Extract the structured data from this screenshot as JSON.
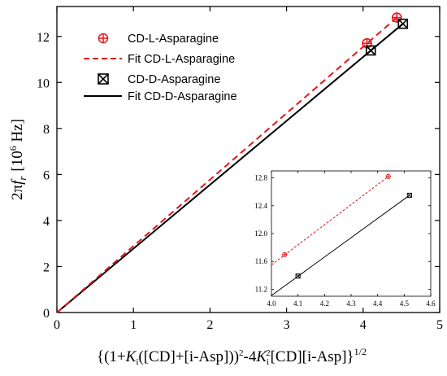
{
  "chart_data": [
    {
      "type": "line",
      "ylabel_parts": {
        "prefix": "2π",
        "f": "f",
        "r": "r",
        "unit_open": "[10",
        "unit_exp": "6",
        "unit_close": " Hz]"
      },
      "xlabel_parts": {
        "a": "{(1+",
        "K": "K",
        "i": "i",
        "b": "([CD]+[i-Asp]))",
        "sq": "2",
        "c": "-4",
        "K2": "K",
        "i2": "i",
        "sq2": "2",
        "d": "[CD][i-Asp]}",
        "half": "1/2"
      },
      "xlim": [
        0,
        5
      ],
      "ylim": [
        0,
        13.3
      ],
      "xticks": [
        "0",
        "1",
        "2",
        "3",
        "4",
        "5"
      ],
      "yticks": [
        "0",
        "2",
        "4",
        "6",
        "8",
        "10",
        "12"
      ],
      "legend_position": "top-left",
      "legend": {
        "l_points": "CD-L-Asparagine",
        "l_fit": "Fit CD-L-Asparagine",
        "d_points": "CD-D-Asparagine",
        "d_fit": "Fit CD-D-Asparagine"
      },
      "colors": {
        "l": "#e8141b",
        "d": "#000000"
      },
      "series": [
        {
          "name": "CD-L-Asparagine",
          "x": [
            4.05,
            4.44
          ],
          "y": [
            11.7,
            12.82
          ]
        },
        {
          "name": "Fit CD-L-Asparagine",
          "x": [
            0,
            4.44
          ],
          "y": [
            0,
            12.82
          ]
        },
        {
          "name": "CD-D-Asparagine",
          "x": [
            4.1,
            4.52
          ],
          "y": [
            11.39,
            12.55
          ]
        },
        {
          "name": "Fit CD-D-Asparagine",
          "x": [
            0,
            4.52
          ],
          "y": [
            0,
            12.55
          ]
        }
      ]
    },
    {
      "type": "line",
      "xlim": [
        4.0,
        4.6
      ],
      "ylim": [
        11.1,
        12.9
      ],
      "xticks": [
        "4.0",
        "4.1",
        "4.2",
        "4.3",
        "4.4",
        "4.5",
        "4.6"
      ],
      "yticks": [
        "11.2",
        "11.6",
        "12.0",
        "12.4",
        "12.8"
      ],
      "series": [
        {
          "name": "CD-L-Asparagine",
          "x": [
            4.05,
            4.44
          ],
          "y": [
            11.7,
            12.82
          ]
        },
        {
          "name": "Fit CD-L-Asparagine",
          "x": [
            4.0,
            4.44
          ],
          "y": [
            11.55,
            12.82
          ]
        },
        {
          "name": "CD-D-Asparagine",
          "x": [
            4.1,
            4.52
          ],
          "y": [
            11.39,
            12.55
          ]
        },
        {
          "name": "Fit CD-D-Asparagine",
          "x": [
            4.0,
            4.52
          ],
          "y": [
            11.11,
            12.55
          ]
        }
      ]
    }
  ]
}
